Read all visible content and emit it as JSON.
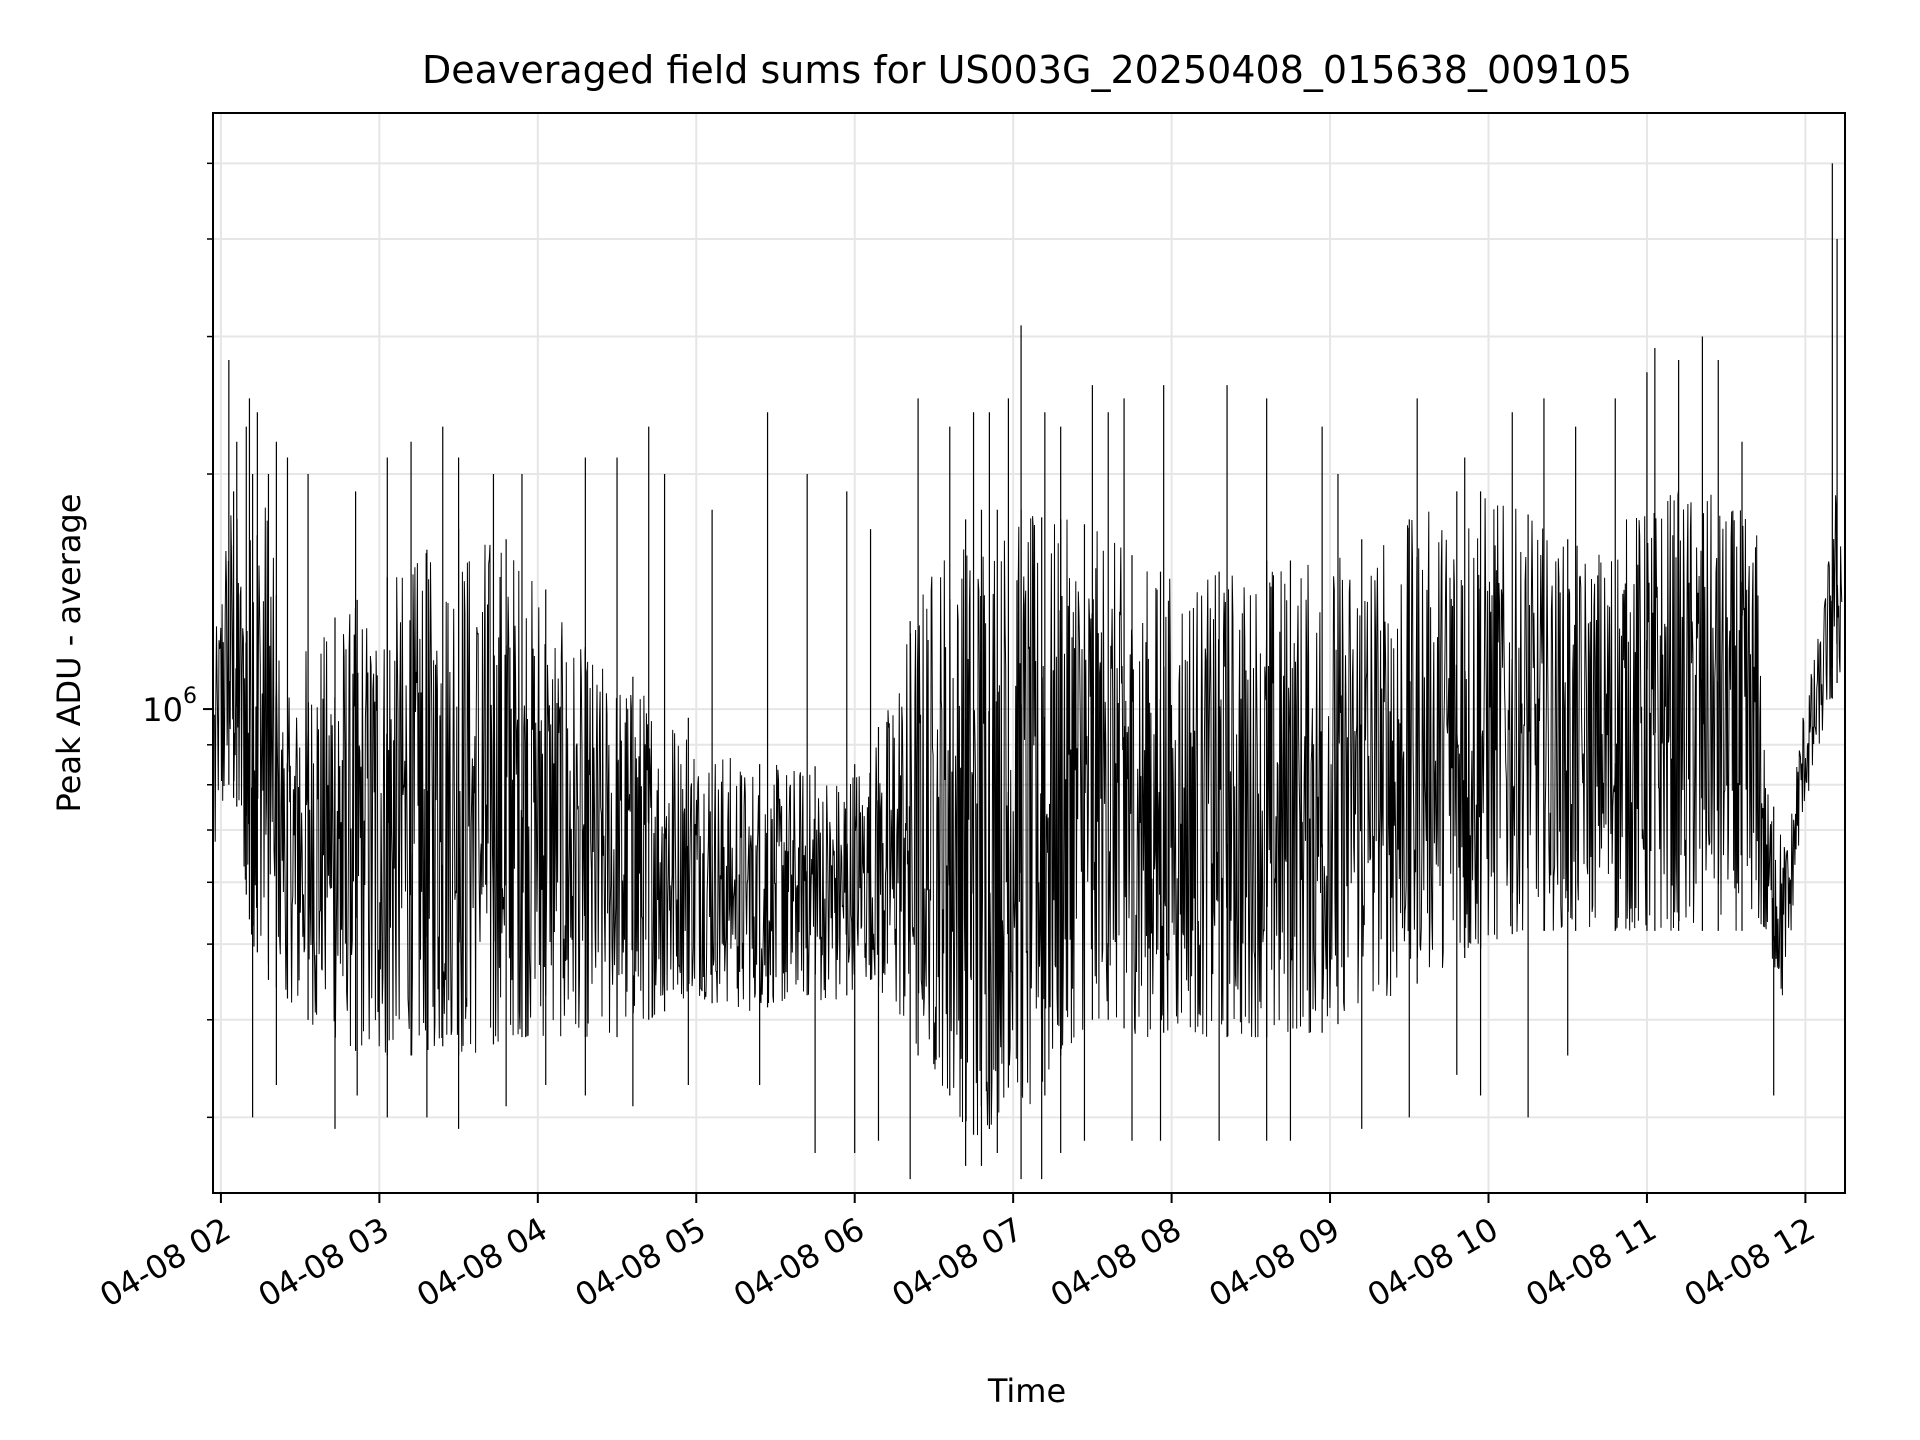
{
  "chart_data": {
    "type": "line",
    "title": "Deaveraged field sums for US003G_20250408_015638_009105",
    "xlabel": "Time",
    "ylabel": "Peak ADU - average",
    "x_ticks": [
      "04-08 02",
      "04-08 03",
      "04-08 04",
      "04-08 05",
      "04-08 06",
      "04-08 07",
      "04-08 08",
      "04-08 09",
      "04-08 10",
      "04-08 11",
      "04-08 12"
    ],
    "x_tick_hours": [
      2,
      3,
      4,
      5,
      6,
      7,
      8,
      9,
      10,
      11,
      12
    ],
    "xlim_hours": [
      1.95,
      12.25
    ],
    "y_scale": "log",
    "y_ticks": [
      {
        "label": "10",
        "exp": "6",
        "value": 1000000
      }
    ],
    "y_minor_ticks": [
      300000,
      400000,
      500000,
      600000,
      700000,
      800000,
      900000,
      2000000,
      3000000,
      4000000,
      5000000
    ],
    "ylim": [
      240000,
      5800000
    ],
    "grid": true,
    "line_color": "#000000",
    "series": [
      {
        "x_hours": [
          1.96,
          2.0,
          2.05,
          2.1,
          2.15,
          2.2,
          2.25,
          2.3,
          2.35,
          2.4,
          2.45,
          2.5,
          2.6,
          2.7,
          2.8,
          2.9,
          3.0,
          3.1,
          3.2,
          3.3,
          3.4,
          3.5,
          3.6,
          3.7,
          3.8,
          3.9,
          4.0,
          4.1,
          4.2,
          4.3,
          4.4,
          4.5,
          4.6,
          4.7,
          4.8,
          4.9,
          5.0,
          5.1,
          5.2,
          5.3,
          5.4,
          5.5,
          5.6,
          5.7,
          5.8,
          5.9,
          6.0,
          6.1,
          6.2,
          6.3,
          6.4,
          6.5,
          6.6,
          6.7,
          6.8,
          6.9,
          7.0,
          7.1,
          7.2,
          7.3,
          7.4,
          7.5,
          7.6,
          7.7,
          7.8,
          7.9,
          8.0,
          8.1,
          8.2,
          8.3,
          8.4,
          8.5,
          8.6,
          8.7,
          8.8,
          8.9,
          9.0,
          9.1,
          9.2,
          9.3,
          9.4,
          9.5,
          9.6,
          9.7,
          9.8,
          9.9,
          10.0,
          10.1,
          10.2,
          10.3,
          10.4,
          10.5,
          10.6,
          10.7,
          10.8,
          10.9,
          11.0,
          11.1,
          11.2,
          11.3,
          11.4,
          11.5,
          11.6,
          11.7,
          11.75,
          11.8,
          11.85,
          11.9,
          11.95,
          12.0,
          12.05,
          12.1,
          12.15,
          12.2,
          12.23
        ],
        "low": [
          600000,
          700000,
          800000,
          750000,
          600000,
          500000,
          480000,
          450000,
          440000,
          430000,
          420000,
          410000,
          390000,
          380000,
          370000,
          360000,
          360000,
          360000,
          360000,
          360000,
          370000,
          360000,
          360000,
          370000,
          380000,
          380000,
          380000,
          380000,
          380000,
          380000,
          380000,
          380000,
          400000,
          400000,
          410000,
          420000,
          430000,
          420000,
          420000,
          410000,
          410000,
          420000,
          420000,
          430000,
          420000,
          420000,
          440000,
          450000,
          420000,
          400000,
          360000,
          340000,
          320000,
          290000,
          280000,
          300000,
          340000,
          300000,
          320000,
          360000,
          380000,
          400000,
          400000,
          390000,
          380000,
          380000,
          390000,
          390000,
          380000,
          380000,
          380000,
          380000,
          380000,
          380000,
          390000,
          380000,
          390000,
          400000,
          420000,
          420000,
          430000,
          440000,
          450000,
          460000,
          480000,
          480000,
          500000,
          510000,
          520000,
          520000,
          520000,
          520000,
          520000,
          520000,
          520000,
          520000,
          520000,
          520000,
          520000,
          520000,
          520000,
          520000,
          520000,
          520000,
          510000,
          470000,
          420000,
          480000,
          650000,
          750000,
          820000,
          900000,
          1000000,
          1080000,
          1100000
        ],
        "high": [
          1200000,
          1500000,
          1900000,
          1800000,
          1500000,
          2000000,
          2200000,
          1900000,
          1400000,
          1100000,
          1000000,
          1200000,
          1250000,
          1300000,
          1350000,
          1400000,
          1450000,
          1500000,
          1550000,
          1600000,
          1650000,
          1700000,
          1700000,
          1700000,
          1650000,
          1600000,
          1500000,
          1350000,
          1250000,
          1200000,
          1150000,
          1100000,
          1100000,
          1050000,
          1050000,
          1000000,
          950000,
          900000,
          880000,
          860000,
          850000,
          850000,
          850000,
          850000,
          840000,
          830000,
          850000,
          900000,
          1000000,
          1200000,
          1400000,
          1600000,
          1700000,
          1750000,
          1800000,
          1800000,
          1800000,
          1800000,
          1750000,
          1750000,
          1750000,
          1700000,
          1700000,
          1600000,
          1550000,
          1500000,
          1500000,
          1500000,
          1500000,
          1500000,
          1550000,
          1550000,
          1550000,
          1550000,
          1550000,
          1600000,
          1600000,
          1600000,
          1650000,
          1650000,
          1700000,
          1750000,
          1800000,
          1850000,
          1900000,
          1900000,
          1900000,
          1850000,
          1800000,
          1750000,
          1700000,
          1650000,
          1600000,
          1650000,
          1700000,
          1800000,
          1850000,
          1900000,
          1950000,
          1950000,
          1900000,
          1850000,
          1800000,
          1700000,
          800000,
          750000,
          700000,
          700000,
          900000,
          1050000,
          1150000,
          1300000,
          1600000,
          2000000,
          1800000
        ],
        "spike_hours": [
          2.05,
          2.08,
          2.1,
          2.16,
          2.18,
          2.23,
          2.3,
          2.35,
          2.42,
          2.55,
          2.85,
          3.05,
          3.2,
          3.4,
          3.5,
          3.72,
          3.9,
          4.3,
          4.5,
          4.7,
          4.8,
          5.1,
          5.45,
          5.7,
          5.95,
          6.1,
          6.4,
          6.6,
          6.75,
          6.85,
          6.97,
          7.05,
          7.2,
          7.3,
          7.5,
          7.6,
          7.7,
          7.95,
          8.35,
          8.6,
          8.95,
          9.05,
          9.55,
          9.85,
          10.15,
          10.35,
          10.55,
          10.8,
          11.0,
          11.05,
          11.2,
          11.35,
          11.45,
          11.6,
          12.17,
          12.2
        ],
        "spike_highs": [
          2800000,
          1900000,
          2200000,
          2300000,
          2500000,
          2400000,
          2000000,
          2200000,
          2100000,
          2000000,
          1900000,
          2100000,
          2200000,
          2300000,
          2100000,
          2000000,
          2000000,
          2100000,
          2100000,
          2300000,
          2000000,
          1800000,
          2400000,
          2000000,
          1900000,
          1700000,
          2500000,
          2300000,
          2400000,
          2400000,
          2500000,
          3100000,
          2400000,
          2300000,
          2600000,
          2400000,
          2500000,
          2600000,
          2600000,
          2500000,
          2300000,
          2000000,
          2500000,
          2100000,
          2400000,
          2500000,
          2300000,
          2500000,
          2700000,
          2900000,
          2800000,
          3000000,
          2800000,
          2200000,
          5000000,
          4000000
        ],
        "dip_hours": [
          2.2,
          2.35,
          2.72,
          2.86,
          3.05,
          3.3,
          3.5,
          3.8,
          4.05,
          4.3,
          4.6,
          4.95,
          5.4,
          5.75,
          6.0,
          6.15,
          6.35,
          6.7,
          6.8,
          6.9,
          7.05,
          7.18,
          7.3,
          7.45,
          7.75,
          7.93,
          8.3,
          8.6,
          8.75,
          9.2,
          9.5,
          9.8,
          9.95,
          10.25,
          10.5,
          11.8
        ],
        "dip_lows": [
          300000,
          330000,
          290000,
          320000,
          300000,
          300000,
          290000,
          310000,
          330000,
          320000,
          310000,
          330000,
          330000,
          270000,
          270000,
          280000,
          250000,
          260000,
          260000,
          270000,
          250000,
          250000,
          270000,
          280000,
          280000,
          280000,
          280000,
          280000,
          280000,
          290000,
          300000,
          340000,
          320000,
          300000,
          360000,
          320000
        ]
      }
    ]
  }
}
